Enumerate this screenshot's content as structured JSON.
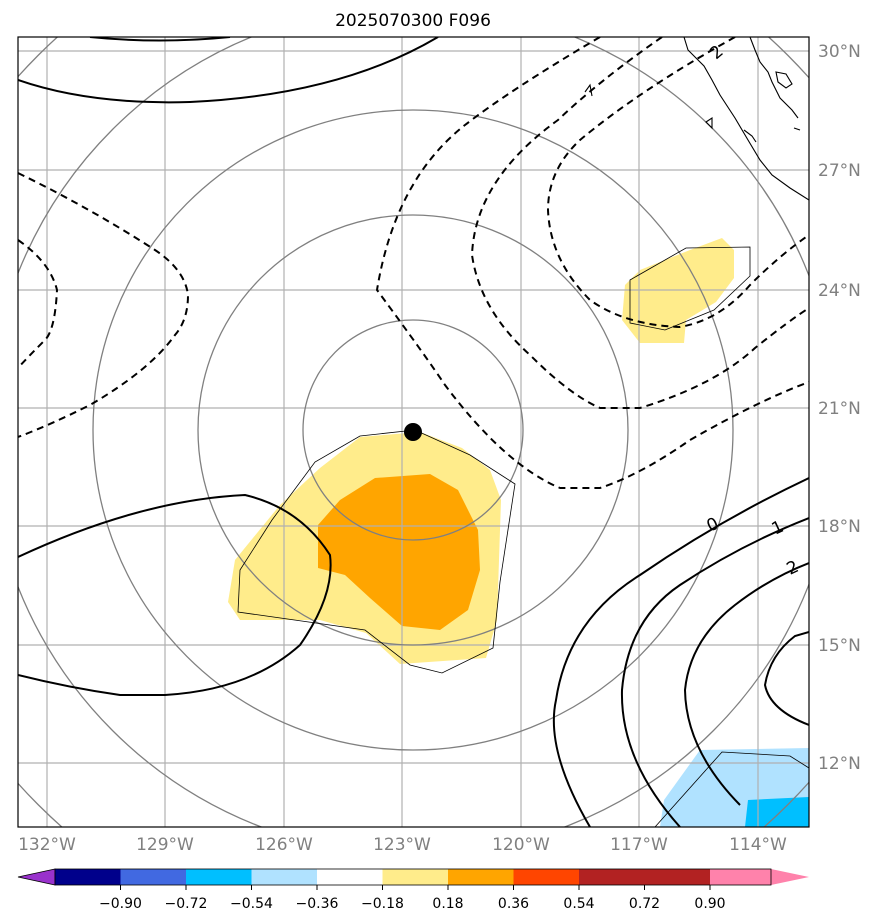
{
  "title": "2025070300 F096",
  "lon_labels": [
    "132°W",
    "129°W",
    "126°W",
    "123°W",
    "120°W",
    "117°W",
    "114°W"
  ],
  "lat_labels": [
    "30°N",
    "27°N",
    "24°N",
    "21°N",
    "18°N",
    "15°N",
    "12°N"
  ],
  "contour_labels": [
    "2",
    "0",
    "1",
    "2"
  ],
  "colorbar": {
    "tick_labels": [
      "−0.90",
      "−0.72",
      "−0.54",
      "−0.36",
      "−0.18",
      "0.18",
      "0.36",
      "0.54",
      "0.72",
      "0.90"
    ],
    "colors": [
      "#9932CC",
      "#00008B",
      "#4169E1",
      "#00BFFF",
      "#B0E2FF",
      "#FFFFFF",
      "#FFEC8B",
      "#FFA500",
      "#FF4500",
      "#B22222",
      "#FF82AB"
    ]
  },
  "storm_center_marker": "black-dot"
}
